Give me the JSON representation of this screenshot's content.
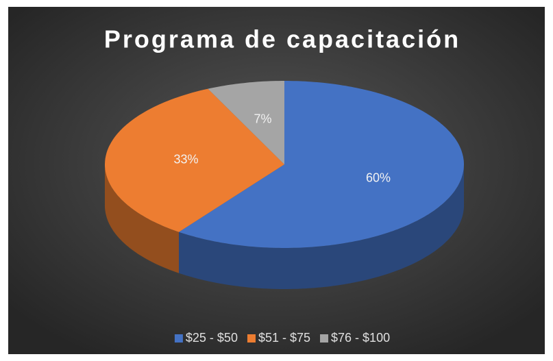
{
  "chart_data": {
    "type": "pie",
    "title": "Programa de capacitación",
    "categories": [
      "$25 - $50",
      "$51 - $75",
      "$76 - $100"
    ],
    "values": [
      60,
      33,
      7
    ],
    "value_labels": [
      "60%",
      "33%",
      "7%"
    ],
    "colors": [
      "#4472c4",
      "#ed7d31",
      "#a5a5a5"
    ],
    "legend": "bottom"
  }
}
